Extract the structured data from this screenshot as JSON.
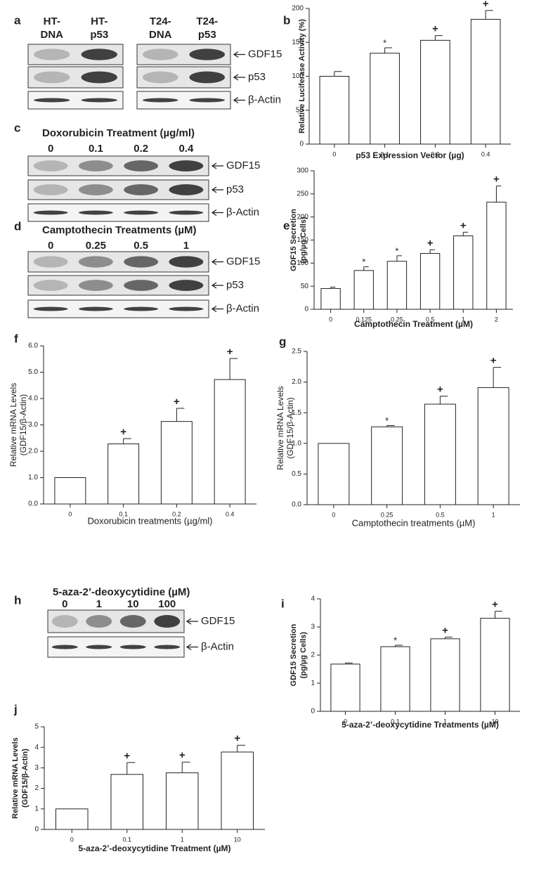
{
  "chart_data": [
    {
      "type": "bar",
      "label": "b",
      "ylabel": [
        "Relative Luciferase Activity (%)"
      ],
      "xlabel": "p53 Expression Vector (µg)",
      "categories": [
        "0",
        "0.1",
        "0.2",
        "0.4"
      ],
      "values": [
        100,
        134,
        153,
        184
      ],
      "errors": [
        7,
        8,
        7,
        13
      ],
      "markers": [
        null,
        "*",
        "+",
        "+"
      ],
      "color": "#ffffff",
      "ylim": [
        0,
        200
      ],
      "yticks": [
        0,
        50,
        100,
        150,
        200
      ]
    },
    {
      "type": "bar",
      "label": "e",
      "ylabel": [
        "GDF15 Secretion",
        "(pg/µg Cells)"
      ],
      "xlabel": "Camptothecin Treatment (µM)",
      "categories": [
        "0",
        "0.125",
        "0.25",
        "0.5",
        "1",
        "2"
      ],
      "values": [
        45,
        84,
        104,
        121,
        159,
        232
      ],
      "errors": [
        3,
        8,
        12,
        8,
        8,
        35
      ],
      "markers": [
        null,
        "*",
        "*",
        "+",
        "+",
        "+"
      ],
      "color": "#ffffff",
      "ylim": [
        0,
        300
      ],
      "yticks": [
        0,
        50,
        100,
        150,
        200,
        250,
        300
      ]
    },
    {
      "type": "bar",
      "label": "f",
      "ylabel": [
        "Relative mRNA Levels",
        "(GDF15/β-Actin)"
      ],
      "xlabel": "Doxorubicin treatments (µg/ml)",
      "categories": [
        "0",
        "0.1",
        "0.2",
        "0.4"
      ],
      "values": [
        1.0,
        2.28,
        3.13,
        4.72
      ],
      "errors": [
        null,
        0.2,
        0.5,
        0.8
      ],
      "markers": [
        null,
        "+",
        "+",
        "+"
      ],
      "color": "#ffffff",
      "ylim": [
        0,
        6
      ],
      "yticks": [
        {
          "value": 0,
          "label": "0.0"
        },
        {
          "value": 1,
          "label": "1.0"
        },
        {
          "value": 2,
          "label": "2.0"
        },
        {
          "value": 3,
          "label": "3.0"
        },
        {
          "value": 4,
          "label": "4.0"
        },
        {
          "value": 5,
          "label": "5.0"
        },
        {
          "value": 6,
          "label": "6.0"
        }
      ]
    },
    {
      "type": "bar",
      "label": "g",
      "ylabel": [
        "Relative mRNA Levels",
        "(GDF15/β-Actin)"
      ],
      "xlabel": "Camptothecin treatments (µM)",
      "categories": [
        "0",
        "0.25",
        "0.5",
        "1"
      ],
      "values": [
        1.0,
        1.27,
        1.64,
        1.91
      ],
      "errors": [
        null,
        0.02,
        0.13,
        0.33
      ],
      "markers": [
        null,
        "*",
        "+",
        "+"
      ],
      "color": "#ffffff",
      "ylim": [
        0,
        2.5
      ],
      "yticks": [
        {
          "value": 0,
          "label": "0.0"
        },
        0.5,
        {
          "value": 1,
          "label": "1.0"
        },
        1.5,
        {
          "value": 2,
          "label": "2.0"
        },
        2.5
      ]
    },
    {
      "type": "bar",
      "label": "i",
      "ylabel": [
        "GDF15 Secretion",
        "(pg/µg Cells)"
      ],
      "xlabel": "5-aza-2’-deoxycytidine Treatments (µM)",
      "categories": [
        "0",
        "0.1",
        "1",
        "10"
      ],
      "values": [
        1.68,
        2.3,
        2.58,
        3.31
      ],
      "errors": [
        0.04,
        0.05,
        0.06,
        0.25
      ],
      "markers": [
        null,
        "*",
        "+",
        "+"
      ],
      "color": "#ffffff",
      "ylim": [
        0,
        4
      ],
      "yticks": [
        0,
        1,
        2,
        3,
        4
      ]
    },
    {
      "type": "bar",
      "label": "j",
      "ylabel": [
        "Relative mRNA Levels",
        "(GDF15/β-Actin)"
      ],
      "xlabel": "5-aza-2’-deoxycytidine Treatment (µM)",
      "categories": [
        "0",
        "0.1",
        "1",
        "10"
      ],
      "values": [
        1.0,
        2.68,
        2.76,
        3.77
      ],
      "errors": [
        null,
        0.58,
        0.52,
        0.33
      ],
      "markers": [
        null,
        "+",
        "+",
        "+"
      ],
      "color": "#ffffff",
      "ylim": [
        0,
        5
      ],
      "yticks": [
        0,
        1,
        2,
        3,
        4,
        5
      ]
    }
  ],
  "blots": [
    {
      "label": "a",
      "groups": [
        {
          "lanes": [
            [
              "HT-",
              "DNA"
            ],
            [
              "HT-",
              "p53"
            ]
          ]
        },
        {
          "lanes": [
            [
              "T24-",
              "DNA"
            ],
            [
              "T24-",
              "p53"
            ]
          ]
        }
      ],
      "rows": [
        "GDF15",
        "p53",
        "β-Actin"
      ]
    },
    {
      "label": "c",
      "title": "Doxorubicin Treatment (µg/ml)",
      "groups": [
        {
          "lanes": [
            "0",
            "0.1",
            "0.2",
            "0.4"
          ]
        }
      ],
      "rows": [
        "GDF15",
        "p53",
        "β-Actin"
      ]
    },
    {
      "label": "d",
      "title": "Camptothecin Treatments (µM)",
      "groups": [
        {
          "lanes": [
            "0",
            "0.25",
            "0.5",
            "1"
          ]
        }
      ],
      "rows": [
        "GDF15",
        "p53",
        "β-Actin"
      ]
    },
    {
      "label": "h",
      "title": "5-aza-2’-deoxycytidine (µM)",
      "groups": [
        {
          "lanes": [
            "0",
            "1",
            "10",
            "100"
          ]
        }
      ],
      "rows": [
        "GDF15",
        "β-Actin"
      ]
    }
  ]
}
